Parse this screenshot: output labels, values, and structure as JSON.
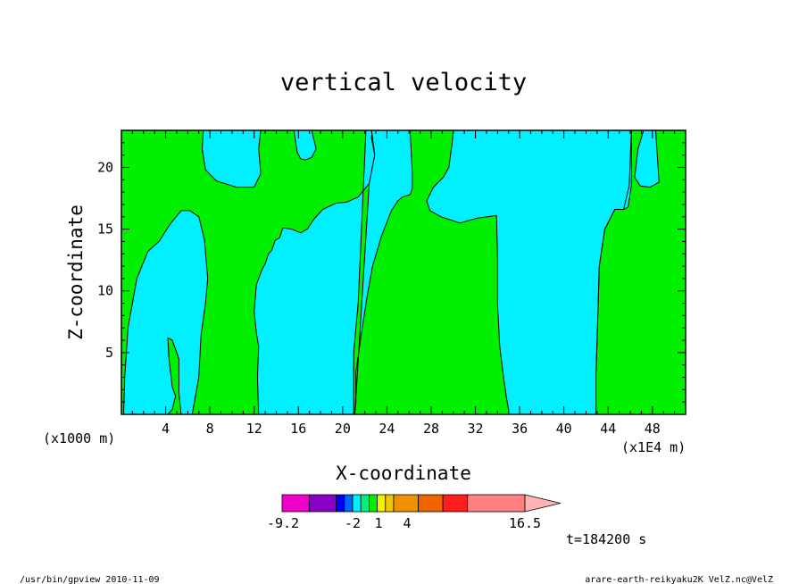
{
  "chart_data": {
    "type": "contour",
    "title": "vertical velocity",
    "xlabel": "X-coordinate",
    "ylabel": "Z-coordinate",
    "x_unit_left": "(x1000 m)",
    "x_unit_right": "(x1E4 m)",
    "xlim": [
      0,
      51
    ],
    "ylim": [
      0,
      23
    ],
    "xticks": [
      "4",
      "8",
      "12",
      "16",
      "20",
      "24",
      "28",
      "32",
      "36",
      "40",
      "44",
      "48"
    ],
    "yticks": [
      "5",
      "10",
      "15",
      "20"
    ],
    "background_fill": "#00f000",
    "fill_regions": [
      {
        "name": "region-a",
        "color": "#00f0ff",
        "x": [
          0.2,
          0.3,
          0.6,
          1.4,
          2.4,
          3.4,
          4.4,
          5.4,
          6.2,
          7.0,
          7.5,
          7.8,
          7.6,
          7.2,
          7.0,
          6.4,
          5.4,
          5.2,
          5.2,
          4.6,
          4.2,
          4.3,
          4.6,
          4.9,
          4.6,
          4.2,
          0.2
        ],
        "y": [
          0.0,
          3.0,
          7.0,
          11.0,
          13.2,
          14.0,
          15.4,
          16.5,
          16.5,
          16.0,
          14.2,
          11.0,
          9.0,
          6.4,
          3.0,
          0.0,
          0.0,
          1.8,
          4.5,
          6.0,
          6.2,
          4.5,
          2.2,
          1.5,
          0.4,
          0.0,
          0.0
        ]
      },
      {
        "name": "region-b",
        "color": "#00f0ff",
        "x": [
          7.4,
          7.3,
          7.6,
          8.6,
          10.4,
          12.0,
          12.6,
          12.4,
          12.6,
          12.3
        ],
        "y": [
          23.0,
          21.5,
          19.8,
          18.9,
          18.4,
          18.4,
          19.5,
          21.5,
          23.0,
          23.0
        ]
      },
      {
        "name": "region-c",
        "color": "#00f0ff",
        "x": [
          15.6,
          15.9,
          16.2,
          16.6,
          17.2,
          17.6,
          17.2,
          15.6
        ],
        "y": [
          23.0,
          21.2,
          20.7,
          20.6,
          20.8,
          21.5,
          23.0,
          23.0
        ]
      },
      {
        "name": "region-d",
        "color": "#00f0ff",
        "x": [
          12.4,
          12.3,
          12.4,
          12.2,
          12.0,
          12.2,
          12.7,
          13.0,
          13.3,
          13.6,
          13.9,
          14.3,
          14.6,
          15.4,
          16.2,
          16.8,
          17.4,
          18.2,
          19.4,
          20.4,
          21.4,
          22.4,
          22.9,
          22.6,
          22.7,
          22.1,
          21.4,
          21.0,
          21.0,
          12.5
        ],
        "y": [
          0.0,
          3.0,
          5.5,
          6.6,
          8.3,
          10.5,
          11.7,
          12.2,
          13.0,
          13.3,
          14.1,
          14.3,
          15.1,
          15.0,
          14.7,
          15.0,
          15.8,
          16.6,
          17.1,
          17.2,
          17.6,
          18.7,
          21.0,
          22.4,
          23.0,
          23.0,
          9.0,
          5.0,
          0.0,
          0.0
        ]
      },
      {
        "name": "region-e",
        "color": "#00f0ff",
        "x": [
          26.1,
          26.3,
          26.3,
          26.1,
          25.4,
          25.0,
          24.4,
          23.5,
          22.7,
          22.2,
          21.6,
          21.2,
          21.2,
          21.1,
          22.4,
          22.9,
          22.7,
          22.6,
          26.1
        ],
        "y": [
          23.0,
          19.5,
          18.3,
          17.8,
          17.6,
          17.3,
          16.5,
          14.4,
          12.0,
          9.5,
          6.0,
          3.4,
          1.0,
          0.0,
          18.7,
          21.0,
          22.4,
          23.0,
          23.0
        ]
      },
      {
        "name": "region-f",
        "color": "#00f0ff",
        "x": [
          30.0,
          29.9,
          29.6,
          29.1,
          28.2,
          27.6,
          27.9,
          28.9,
          30.6,
          32.2,
          33.9,
          34.0,
          34.0,
          34.2,
          34.5,
          34.8,
          35.0,
          35.0,
          42.9,
          42.9,
          43.0,
          43.2,
          43.7,
          44.6,
          45.4,
          45.8,
          46.1,
          46.1,
          47.2,
          46.7,
          46.4,
          46.9,
          47.8,
          48.6,
          48.4,
          48.3,
          48.1,
          30.0
        ],
        "y": [
          23.0,
          22.0,
          20.0,
          19.2,
          18.4,
          17.3,
          16.5,
          16.0,
          15.5,
          15.9,
          16.1,
          13.0,
          9.0,
          5.5,
          3.3,
          1.4,
          0.4,
          0.0,
          0.0,
          3.2,
          6.0,
          12.0,
          15.0,
          16.6,
          16.6,
          16.8,
          18.5,
          23.0,
          23.0,
          21.5,
          19.2,
          18.5,
          18.4,
          18.8,
          21.5,
          23.0,
          23.0,
          23.0
        ]
      }
    ],
    "contour_lines": [
      {
        "x": [
          46.1,
          45.9,
          45.4,
          44.6,
          43.7,
          43.2,
          43.0,
          42.9,
          42.9
        ],
        "y": [
          23.0,
          18.5,
          16.6,
          16.6,
          15.0,
          12.0,
          6.0,
          3.2,
          0.0
        ]
      }
    ],
    "colorbar": {
      "min_label": "-9.2",
      "tick_labels": [
        "-2",
        "1",
        "4"
      ],
      "max_label": "16.5",
      "colors": [
        "#f000c8",
        "#8800c8",
        "#0000ff",
        "#0066ff",
        "#00f0ff",
        "#00f080",
        "#00f000",
        "#f0f000",
        "#f0c800",
        "#f09000",
        "#f06400",
        "#ff1e1e",
        "#ff8080"
      ],
      "arrow_color": "#ffb4b4"
    },
    "time_label": "t=184200 s",
    "footer_left": "/usr/bin/gpview  2010-11-09",
    "footer_right": "arare-earth-reikyaku2K_VelZ.nc@VelZ"
  }
}
